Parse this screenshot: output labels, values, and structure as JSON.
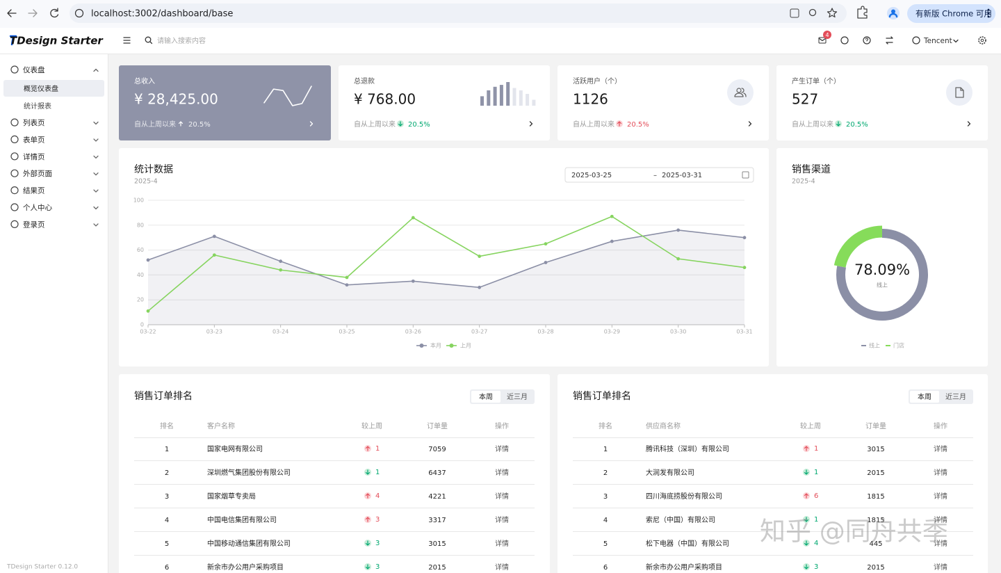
{
  "browser": {
    "url": "localhost:3002/dashboard/base",
    "update_button": "有新版 Chrome 可用"
  },
  "header": {
    "logo": "TDesign Starter",
    "search_placeholder": "请输入搜索内容",
    "notification_count": 4,
    "user": "Tencent"
  },
  "sidebar": {
    "menu": [
      {
        "label": "仪表盘",
        "expanded": true,
        "children": [
          {
            "label": "概览仪表盘",
            "active": true
          },
          {
            "label": "统计报表",
            "active": false
          }
        ]
      },
      {
        "label": "列表页"
      },
      {
        "label": "表单页"
      },
      {
        "label": "详情页"
      },
      {
        "label": "外部页面"
      },
      {
        "label": "结果页"
      },
      {
        "label": "个人中心"
      },
      {
        "label": "登录页"
      }
    ],
    "footer": "TDesign Starter 0.12.0"
  },
  "stat_cards": [
    {
      "title": "总收入",
      "value": "¥ 28,425.00",
      "note": "自从上周以来",
      "trend": "up",
      "change": "20.5%",
      "highlight": true,
      "sparkline": [
        24,
        82,
        76,
        12,
        21,
        94
      ],
      "sparkline_lim": [
        0,
        100
      ]
    },
    {
      "title": "总退款",
      "value": "¥ 768.00",
      "note": "自从上周以来",
      "trend": "down",
      "change": "20.5%",
      "highlight": false,
      "bars": [
        40,
        65,
        80,
        88,
        100,
        75,
        65,
        50,
        25
      ],
      "bars_lim": [
        0,
        100
      ],
      "bars_active": 5
    },
    {
      "title": "活跃用户（个）",
      "value": "1126",
      "note": "自从上周以来",
      "trend": "up",
      "change": "20.5%",
      "highlight": false,
      "icon": "users"
    },
    {
      "title": "产生订单（个）",
      "value": "527",
      "note": "自从上周以来",
      "trend": "down",
      "change": "20.5%",
      "highlight": false,
      "icon": "file"
    }
  ],
  "date_range": {
    "start": "2025-03-25",
    "separator": "–",
    "end": "2025-03-31"
  },
  "chart_data": [
    {
      "type": "line",
      "title": "统计数据",
      "subtitle": "2025-4",
      "categories": [
        "03-22",
        "03-23",
        "03-24",
        "03-25",
        "03-26",
        "03-27",
        "03-28",
        "03-29",
        "03-30",
        "03-31"
      ],
      "series": [
        {
          "name": "本月",
          "color": "#8b8fa6",
          "area": true,
          "values": [
            52,
            71,
            51,
            32,
            35,
            30,
            50,
            67,
            76,
            70
          ]
        },
        {
          "name": "上月",
          "color": "#86d45f",
          "area": false,
          "values": [
            11,
            56,
            44,
            38,
            86,
            55,
            65,
            87,
            53,
            46
          ]
        }
      ],
      "ylim": [
        0,
        100
      ],
      "yticks": [
        0,
        20,
        40,
        60,
        80,
        100
      ],
      "grid": true,
      "legend": "bottom"
    },
    {
      "type": "pie",
      "title": "销售渠道",
      "subtitle": "2025-4",
      "categories": [
        "线上",
        "门店"
      ],
      "values": [
        78.09,
        21.91
      ],
      "colors": [
        "#8b8fa6",
        "#86dc5a"
      ],
      "center_label": "78.09%",
      "center_caption": "线上",
      "legend": "bottom"
    }
  ],
  "tables": [
    {
      "title": "销售订单排名",
      "tabs": [
        "本周",
        "近三月"
      ],
      "active_tab": 0,
      "columns": [
        "排名",
        "客户名称",
        "较上周",
        "订单量",
        "操作"
      ],
      "rows": [
        {
          "rank": 1,
          "name": "国家电网有限公司",
          "trend": "up",
          "change": 1,
          "count": 7059,
          "action": "详情"
        },
        {
          "rank": 2,
          "name": "深圳燃气集团股份有限公司",
          "trend": "down",
          "change": 1,
          "count": 6437,
          "action": "详情"
        },
        {
          "rank": 3,
          "name": "国家烟草专卖局",
          "trend": "up",
          "change": 4,
          "count": 4221,
          "action": "详情"
        },
        {
          "rank": 4,
          "name": "中国电信集团有限公司",
          "trend": "up",
          "change": 3,
          "count": 3317,
          "action": "详情"
        },
        {
          "rank": 5,
          "name": "中国移动通信集团有限公司",
          "trend": "down",
          "change": 3,
          "count": 3015,
          "action": "详情"
        },
        {
          "rank": 6,
          "name": "新余市办公用户采购项目",
          "trend": "down",
          "change": 3,
          "count": 2015,
          "action": "详情"
        }
      ]
    },
    {
      "title": "销售订单排名",
      "tabs": [
        "本周",
        "近三月"
      ],
      "active_tab": 0,
      "columns": [
        "排名",
        "供应商名称",
        "较上周",
        "订单量",
        "操作"
      ],
      "rows": [
        {
          "rank": 1,
          "name": "腾讯科技（深圳）有限公司",
          "trend": "up",
          "change": 1,
          "count": 3015,
          "action": "详情"
        },
        {
          "rank": 2,
          "name": "大润发有限公司",
          "trend": "down",
          "change": 1,
          "count": 2015,
          "action": "详情"
        },
        {
          "rank": 3,
          "name": "四川海底捞股份有限公司",
          "trend": "up",
          "change": 6,
          "count": 1815,
          "action": "详情"
        },
        {
          "rank": 4,
          "name": "索尼（中国）有限公司",
          "trend": "down",
          "change": 1,
          "count": 1815,
          "action": "详情"
        },
        {
          "rank": 5,
          "name": "松下电器（中国）有限公司",
          "trend": "down",
          "change": 4,
          "count": 445,
          "action": "详情"
        },
        {
          "rank": 6,
          "name": "新余市办公用户采购项目",
          "trend": "down",
          "change": 3,
          "count": 2015,
          "action": "详情"
        }
      ]
    }
  ],
  "watermark": "知乎 @同舟共季"
}
